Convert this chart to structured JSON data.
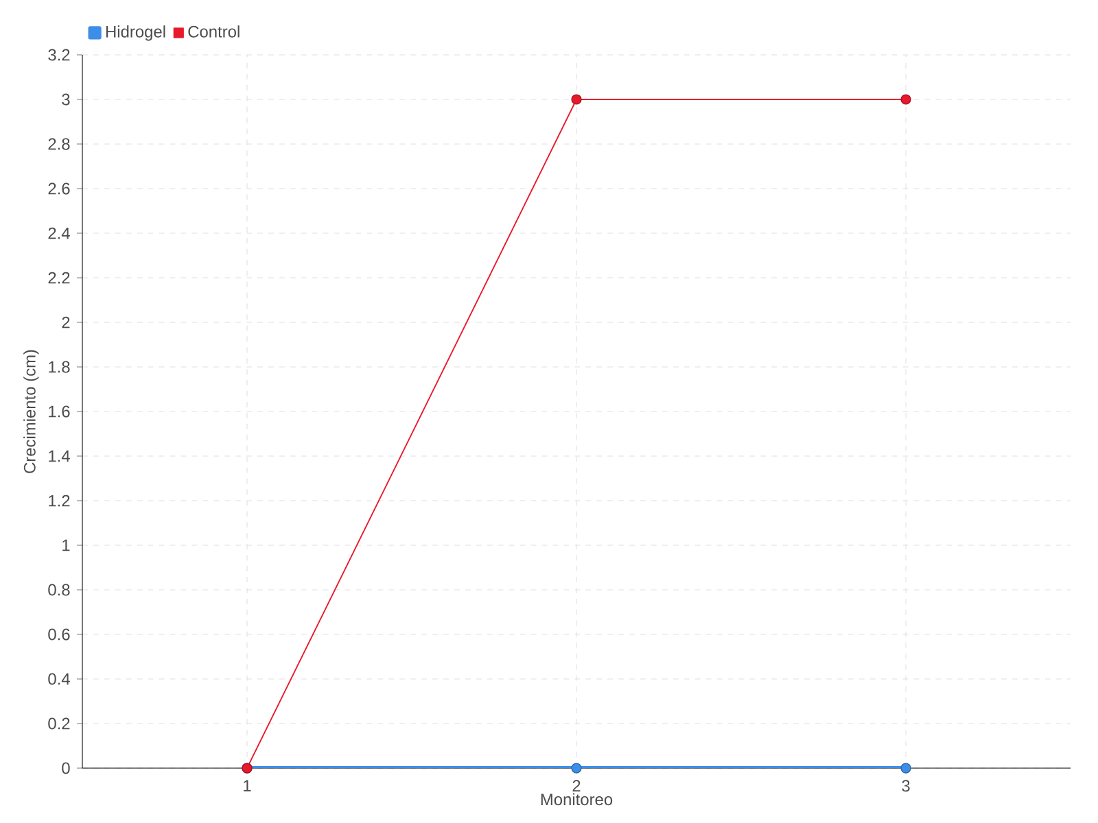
{
  "chart_data": {
    "type": "line",
    "xlabel": "Monitoreo",
    "ylabel": "Crecimiento (cm)",
    "categories": [
      "1",
      "2",
      "3"
    ],
    "series": [
      {
        "name": "Hidrogel",
        "color": "#3d8ee8",
        "values": [
          0,
          0,
          0
        ]
      },
      {
        "name": "Control",
        "color": "#e8192c",
        "values": [
          0,
          3,
          3
        ]
      }
    ],
    "ylim": [
      0,
      3.2
    ],
    "yticks": [
      0,
      0.2,
      0.4,
      0.6,
      0.8,
      1,
      1.2,
      1.4,
      1.6,
      1.8,
      2,
      2.2,
      2.4,
      2.6,
      2.8,
      3,
      3.2
    ],
    "grid": true,
    "legend": "top left",
    "marker": "circle"
  }
}
